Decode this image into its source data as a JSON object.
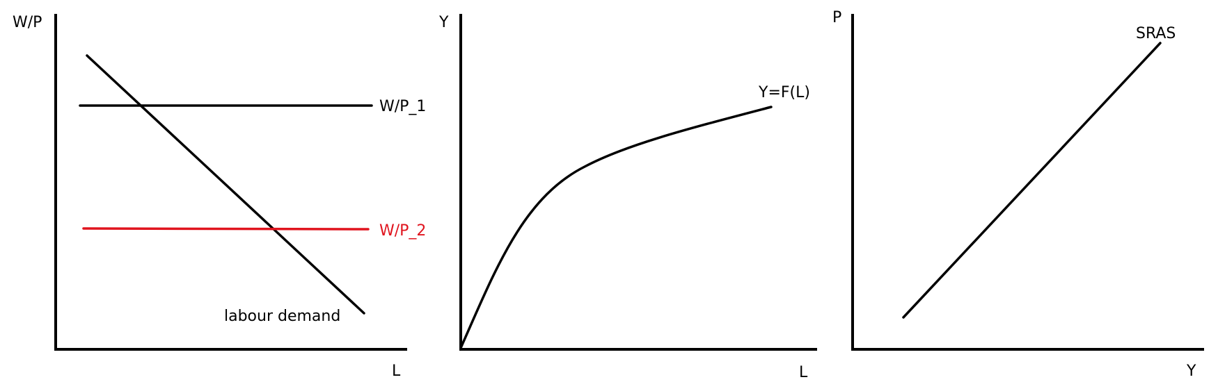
{
  "colors": {
    "ink": "#000000",
    "highlight": "#e0141e"
  },
  "panels": {
    "labour_market": {
      "y_axis_label": "W/P",
      "x_axis_label": "L",
      "wage_line_1_label": "W/P_1",
      "wage_line_2_label": "W/P_2",
      "demand_curve_label": "labour demand"
    },
    "production": {
      "y_axis_label": "Y",
      "x_axis_label": "L",
      "curve_label": "Y=F(L)"
    },
    "aggregate_supply": {
      "y_axis_label": "P",
      "x_axis_label": "Y",
      "curve_label": "SRAS"
    }
  }
}
